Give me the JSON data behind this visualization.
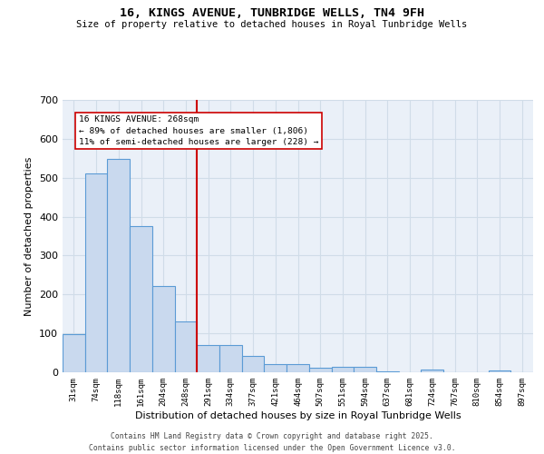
{
  "title": "16, KINGS AVENUE, TUNBRIDGE WELLS, TN4 9FH",
  "subtitle": "Size of property relative to detached houses in Royal Tunbridge Wells",
  "xlabel": "Distribution of detached houses by size in Royal Tunbridge Wells",
  "ylabel": "Number of detached properties",
  "categories": [
    "31sqm",
    "74sqm",
    "118sqm",
    "161sqm",
    "204sqm",
    "248sqm",
    "291sqm",
    "334sqm",
    "377sqm",
    "421sqm",
    "464sqm",
    "507sqm",
    "551sqm",
    "594sqm",
    "637sqm",
    "681sqm",
    "724sqm",
    "767sqm",
    "810sqm",
    "854sqm",
    "897sqm"
  ],
  "values": [
    97,
    512,
    548,
    375,
    222,
    130,
    70,
    70,
    43,
    20,
    22,
    11,
    13,
    13,
    2,
    0,
    6,
    0,
    0,
    5,
    0
  ],
  "bar_color": "#c9d9ee",
  "bar_edge_color": "#5b9bd5",
  "vline_x_index": 5.5,
  "vline_color": "#cc0000",
  "annotation_text": "16 KINGS AVENUE: 268sqm\n← 89% of detached houses are smaller (1,806)\n11% of semi-detached houses are larger (228) →",
  "annotation_box_color": "#ffffff",
  "annotation_box_edge_color": "#cc0000",
  "grid_color": "#d0dce8",
  "background_color": "#eaf0f8",
  "ylim": [
    0,
    700
  ],
  "yticks": [
    0,
    100,
    200,
    300,
    400,
    500,
    600,
    700
  ],
  "footer_line1": "Contains HM Land Registry data © Crown copyright and database right 2025.",
  "footer_line2": "Contains public sector information licensed under the Open Government Licence v3.0."
}
